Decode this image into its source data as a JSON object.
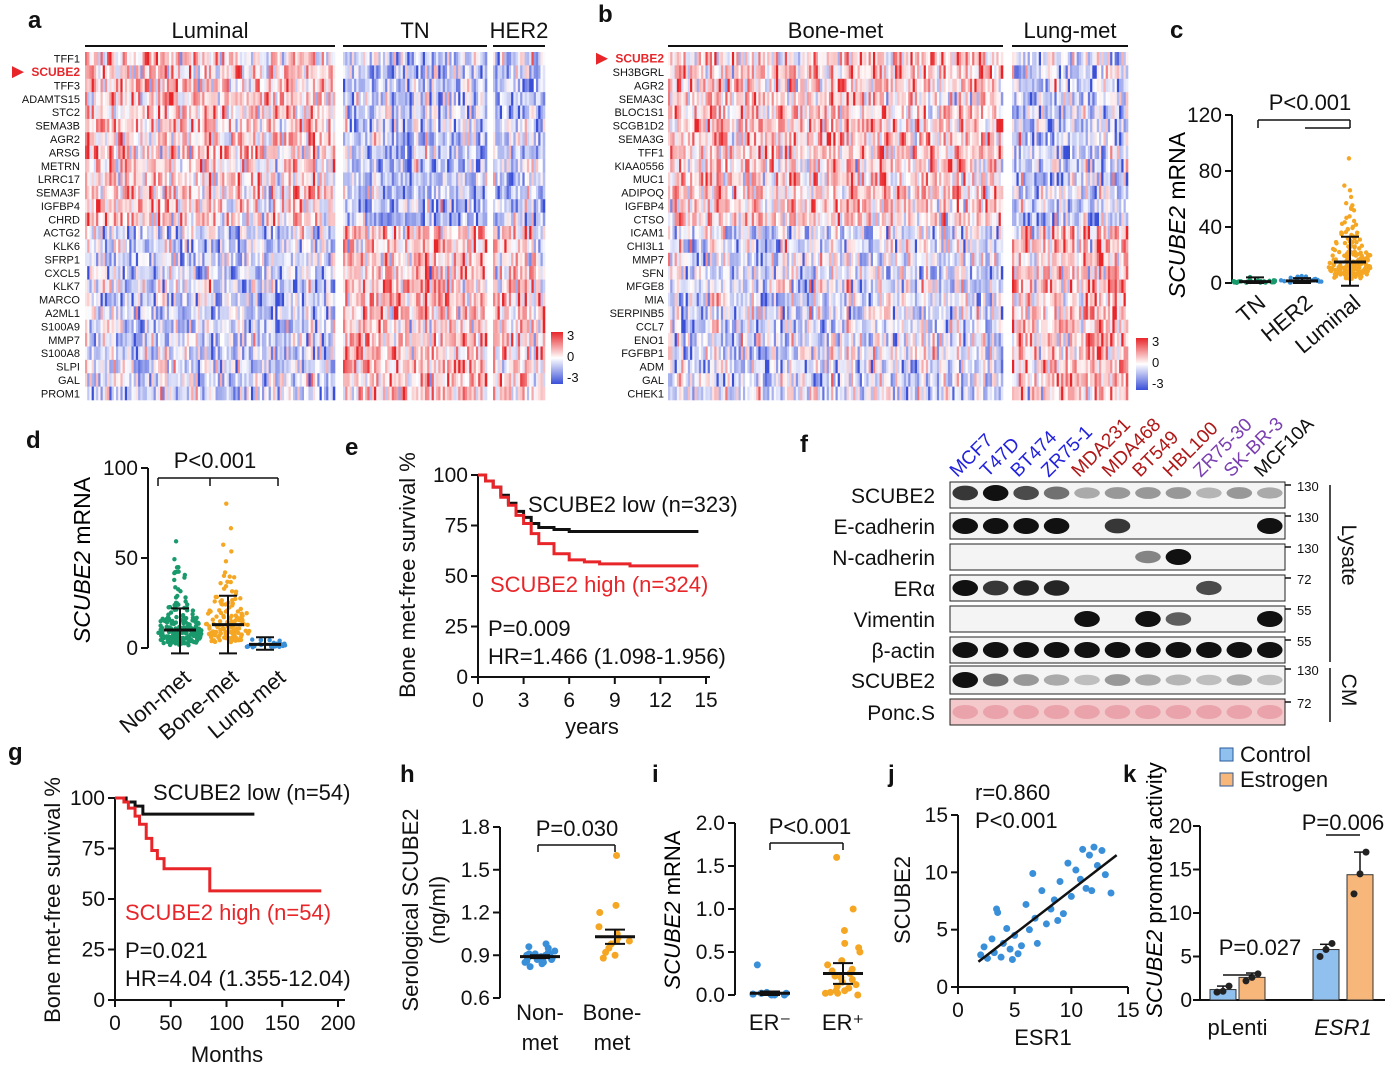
{
  "panels": {
    "a": "a",
    "b": "b",
    "c": "c",
    "d": "d",
    "e": "e",
    "f": "f",
    "g": "g",
    "h": "h",
    "i": "i",
    "j": "j",
    "k": "k"
  },
  "colors": {
    "red": "#e8262a",
    "blue": "#3a4fd8",
    "green": "#1a9a6c",
    "orange": "#f5a623",
    "lightblue": "#3a8fd9",
    "control": "#8fc0ee",
    "estrogen": "#f7b67a",
    "line_blue": "#2222dd",
    "line_red": "#b01818",
    "line_purple": "#7a3fb0"
  },
  "chart_data": [
    {
      "type": "heatmap",
      "panel": "a",
      "groups": [
        "Luminal",
        "TN",
        "HER2"
      ],
      "genes": [
        "TFF1",
        "SCUBE2",
        "TFF3",
        "ADAMTS15",
        "STC2",
        "SEMA3B",
        "AGR2",
        "ARSG",
        "METRN",
        "LRRC17",
        "SEMA3F",
        "IGFBP4",
        "CHRD",
        "ACTG2",
        "KLK6",
        "SFRP1",
        "CXCL5",
        "KLK7",
        "MARCO",
        "A2ML1",
        "S100A9",
        "MMP7",
        "S100A8",
        "SLPI",
        "GAL",
        "PROM1"
      ],
      "highlight": "SCUBE2",
      "colorbar_ticks": [
        "3",
        "0",
        "-3"
      ],
      "color_range": [
        -3,
        3
      ]
    },
    {
      "type": "heatmap",
      "panel": "b",
      "groups": [
        "Bone-met",
        "Lung-met"
      ],
      "genes": [
        "SCUBE2",
        "SH3BGRL",
        "AGR2",
        "SEMA3C",
        "BLOC1S1",
        "SCGB1D2",
        "SEMA3G",
        "TFF1",
        "KIAA0556",
        "MUC1",
        "ADIPOQ",
        "IGFBP4",
        "CTSO",
        "ICAM1",
        "CHI3L1",
        "MMP7",
        "SFN",
        "MFGE8",
        "MIA",
        "SERPINB5",
        "CCL7",
        "ENO1",
        "FGFBP1",
        "ADM",
        "GAL",
        "CHEK1"
      ],
      "highlight": "SCUBE2",
      "colorbar_ticks": [
        "3",
        "0",
        "-3"
      ],
      "color_range": [
        -3,
        3
      ]
    },
    {
      "type": "scatter",
      "panel": "c",
      "ylabel_italic": "SCUBE2",
      "ylabel_rest": " mRNA",
      "ylim": [
        0,
        120
      ],
      "yticks": [
        "0",
        "40",
        "80",
        "120"
      ],
      "categories": [
        "TN",
        "HER2",
        "Luminal"
      ],
      "median": [
        1,
        1.5,
        15
      ],
      "error_low": [
        0,
        0,
        -2
      ],
      "error_high": [
        4,
        3.5,
        33
      ],
      "max": [
        18,
        10,
        98
      ],
      "annotation": "P<0.001"
    },
    {
      "type": "scatter",
      "panel": "d",
      "ylabel_italic": "SCUBE2",
      "ylabel_rest": " mRNA",
      "ylim": [
        0,
        100
      ],
      "yticks": [
        "0",
        "50",
        "100"
      ],
      "categories": [
        "Non-met",
        "Bone-met",
        "Lung-met"
      ],
      "median": [
        10,
        13,
        2
      ],
      "error_low": [
        -3,
        -3,
        -1
      ],
      "error_high": [
        22,
        29,
        6
      ],
      "max": [
        62,
        88,
        12
      ],
      "annotation": "P<0.001"
    },
    {
      "type": "line",
      "panel": "e",
      "ylabel": "Bone met-free survival %",
      "xlabel": "years",
      "xlim": [
        0,
        15
      ],
      "ylim": [
        0,
        100
      ],
      "xticks": [
        "0",
        "3",
        "6",
        "9",
        "12",
        "15"
      ],
      "yticks": [
        "0",
        "25",
        "50",
        "75",
        "100"
      ],
      "series": [
        {
          "name": "SCUBE2 low (n=323)",
          "x": [
            0,
            0.5,
            1,
            1.5,
            2,
            2.5,
            3,
            3.5,
            4,
            5,
            6,
            8,
            14.5
          ],
          "y": [
            100,
            97,
            94,
            90,
            86,
            82,
            79,
            76,
            74,
            73,
            72,
            72,
            72
          ]
        },
        {
          "name": "SCUBE2 high (n=324)",
          "x": [
            0,
            0.5,
            1,
            1.5,
            2,
            2.5,
            3,
            3.5,
            4,
            5,
            6,
            7,
            8,
            10,
            14.5
          ],
          "y": [
            100,
            97,
            94,
            89,
            85,
            80,
            76,
            71,
            66,
            61,
            58,
            57,
            56,
            55,
            55
          ]
        }
      ],
      "annotations": [
        "P=0.009",
        "HR=1.466 (1.098-1.956)"
      ]
    },
    {
      "type": "table",
      "panel": "f",
      "cell_lines": [
        "MCF7",
        "T47D",
        "BT474",
        "ZR75-1",
        "MDA231",
        "MDA468",
        "BT549",
        "HBL100",
        "ZR75-30",
        "SK-BR-3",
        "MCF10A"
      ],
      "cell_line_groups": [
        "blue",
        "blue",
        "blue",
        "blue",
        "red",
        "red",
        "red",
        "red",
        "purple",
        "purple",
        "black"
      ],
      "rows": [
        {
          "label": "SCUBE2",
          "mw": "130",
          "intensity": [
            0.8,
            1,
            0.7,
            0.5,
            0.2,
            0.3,
            0.3,
            0.3,
            0.15,
            0.3,
            0.2
          ]
        },
        {
          "label": "E-cadherin",
          "mw": "130",
          "intensity": [
            1,
            1,
            1,
            1,
            0,
            0.8,
            0,
            0,
            0,
            0,
            1
          ]
        },
        {
          "label": "N-cadherin",
          "mw": "130",
          "intensity": [
            0,
            0,
            0,
            0,
            0,
            0,
            0.4,
            1,
            0,
            0,
            0
          ]
        },
        {
          "label": "ERα",
          "mw": "72",
          "intensity": [
            1,
            0.8,
            0.9,
            0.9,
            0,
            0,
            0,
            0,
            0.7,
            0,
            0
          ]
        },
        {
          "label": "Vimentin",
          "mw": "55",
          "intensity": [
            0,
            0,
            0,
            0,
            1,
            0,
            1,
            0.6,
            0,
            0,
            1
          ]
        },
        {
          "label": "β-actin",
          "mw": "55",
          "intensity": [
            1,
            1,
            1,
            1,
            1,
            1,
            1,
            1,
            1,
            1,
            1
          ]
        },
        {
          "label": "SCUBE2",
          "mw": "130",
          "intensity": [
            1,
            0.5,
            0.3,
            0.2,
            0.1,
            0.3,
            0.2,
            0.15,
            0.1,
            0.2,
            0.1
          ]
        },
        {
          "label": "Ponc.S",
          "mw": "72",
          "intensity": [
            1,
            1,
            1,
            1,
            1,
            1,
            1,
            1,
            1,
            1,
            1
          ]
        }
      ],
      "sections": [
        "Lysate",
        "CM"
      ]
    },
    {
      "type": "line",
      "panel": "g",
      "ylabel": "Bone met-free survival %",
      "xlabel": "Months",
      "xlim": [
        0,
        200
      ],
      "ylim": [
        0,
        100
      ],
      "xticks": [
        "0",
        "50",
        "100",
        "150",
        "200"
      ],
      "yticks": [
        "0",
        "25",
        "50",
        "75",
        "100"
      ],
      "series": [
        {
          "name": "SCUBE2 low (n=54)",
          "x": [
            0,
            10,
            18,
            25,
            125
          ],
          "y": [
            100,
            98,
            96,
            92,
            92
          ]
        },
        {
          "name": "SCUBE2 high (n=54)",
          "x": [
            0,
            8,
            12,
            18,
            22,
            28,
            33,
            38,
            44,
            85,
            185
          ],
          "y": [
            100,
            98,
            95,
            91,
            87,
            80,
            74,
            70,
            65,
            54,
            54
          ]
        }
      ],
      "annotations": [
        "P=0.021",
        "HR=4.04 (1.355-12.04)"
      ]
    },
    {
      "type": "scatter",
      "panel": "h",
      "ylabel": "Serological SCUBE2",
      "ylabel2": "(ng/ml)",
      "ylim": [
        0.6,
        1.8
      ],
      "yticks": [
        "0.6",
        "0.9",
        "1.2",
        "1.5",
        "1.8"
      ],
      "categories": [
        [
          "Non-",
          "met"
        ],
        [
          "Bone-",
          "met"
        ]
      ],
      "values": [
        [
          0.88,
          0.9,
          0.86,
          0.92,
          0.95,
          0.85,
          0.89,
          0.87,
          0.91,
          0.84,
          0.93,
          0.88,
          0.9,
          0.86,
          0.96,
          0.82,
          0.89,
          0.91,
          0.87,
          0.98,
          0.85,
          0.9
        ],
        [
          0.9,
          0.95,
          1.0,
          1.02,
          1.05,
          1.1,
          0.92,
          0.98,
          1.2,
          1.25,
          1.6,
          0.88,
          1.0
        ]
      ],
      "mean": [
        0.89,
        1.03
      ],
      "sem": [
        0.01,
        0.05
      ],
      "annotation": "P=0.030"
    },
    {
      "type": "scatter",
      "panel": "i",
      "ylabel_italic": "SCUBE2",
      "ylabel_rest": " mRNA",
      "ylim": [
        0,
        2.0
      ],
      "yticks": [
        "0.0",
        "0.5",
        "1.0",
        "1.5",
        "2.0"
      ],
      "categories": [
        "ER⁻",
        "ER⁺"
      ],
      "values": [
        [
          0.0,
          0.01,
          0.02,
          0.0,
          0.01,
          0.03,
          0.35,
          0.02,
          0.01,
          0.0,
          0.02,
          0.01
        ],
        [
          0.0,
          0.02,
          0.05,
          0.1,
          0.15,
          0.2,
          0.25,
          0.3,
          0.35,
          0.4,
          0.5,
          0.55,
          0.6,
          0.75,
          1.0,
          1.6,
          0.05,
          0.08,
          0.12,
          0.02,
          0.03,
          0.18,
          0.22,
          0.28
        ]
      ],
      "mean": [
        0.02,
        0.25
      ],
      "sem": [
        0.02,
        0.12
      ],
      "annotation": "P<0.001"
    },
    {
      "type": "scatter",
      "panel": "j",
      "xlabel": "ESR1",
      "ylabel": "SCUBE2",
      "xlim": [
        0,
        15
      ],
      "ylim": [
        0,
        15
      ],
      "xticks": [
        "0",
        "5",
        "10",
        "15"
      ],
      "yticks": [
        "0",
        "5",
        "10",
        "15"
      ],
      "x": [
        2,
        2.3,
        2.6,
        3,
        3.2,
        3.5,
        3.8,
        4,
        4.3,
        4.6,
        5,
        5.3,
        5.6,
        6,
        6.3,
        6.8,
        7,
        7.4,
        7.8,
        8.2,
        8.5,
        9,
        9.3,
        9.7,
        10,
        10.4,
        10.8,
        11,
        11.3,
        11.6,
        12,
        12.3,
        12.7,
        13,
        13.5,
        3.4,
        4.8,
        6.6,
        8.8,
        11.8
      ],
      "y": [
        2.8,
        3.5,
        2.5,
        4.2,
        3,
        6.5,
        2.6,
        3.8,
        5.1,
        3.3,
        4.5,
        2.9,
        3.6,
        7.2,
        5,
        6,
        3.8,
        8.4,
        5.5,
        6.8,
        7.6,
        9.2,
        6.4,
        10.8,
        7.9,
        10.2,
        9.4,
        12,
        8.6,
        11.5,
        12.2,
        10.6,
        11.9,
        9.8,
        8.2,
        6.8,
        2.4,
        9.9,
        5.8,
        8.4
      ],
      "fit": [
        [
          1.8,
          2.2
        ],
        [
          14,
          11.5
        ]
      ],
      "annotations": [
        "r=0.860",
        "P<0.001"
      ]
    },
    {
      "type": "bar",
      "panel": "k",
      "ylabel_italic": "SCUBE2",
      "ylabel_rest": " promoter activity",
      "ylim": [
        0,
        20
      ],
      "yticks": [
        "0",
        "5",
        "10",
        "15",
        "20"
      ],
      "categories": [
        "pLenti",
        "ESR1"
      ],
      "series": [
        {
          "name": "Control",
          "values": [
            1.2,
            5.8
          ],
          "err": [
            0.4,
            0.6
          ],
          "points": [
            [
              0.9,
              1.0,
              1.6
            ],
            [
              5.0,
              5.8,
              6.5
            ]
          ]
        },
        {
          "name": "Estrogen",
          "values": [
            2.6,
            14.4
          ],
          "err": [
            0.5,
            2.6
          ],
          "points": [
            [
              2.2,
              2.6,
              3.0
            ],
            [
              12.2,
              14.5,
              17
            ]
          ]
        }
      ],
      "annotations": [
        "P=0.027",
        "P=0.006"
      ]
    }
  ]
}
